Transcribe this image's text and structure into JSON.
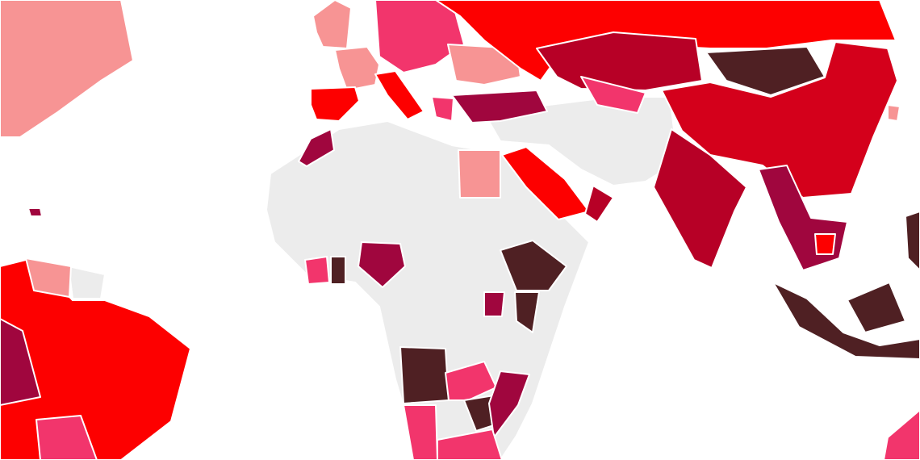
{
  "map": {
    "background": "#ffffff",
    "border_color": "#ffffff",
    "palette": {
      "no-data": "#ececec",
      "light": "#f79494",
      "pink": "#f2356c",
      "bright-red": "#fd0000",
      "red": "#d4001b",
      "dark-red": "#b70026",
      "crimson": "#a0063e",
      "dark-brown": "#4f2023"
    }
  }
}
